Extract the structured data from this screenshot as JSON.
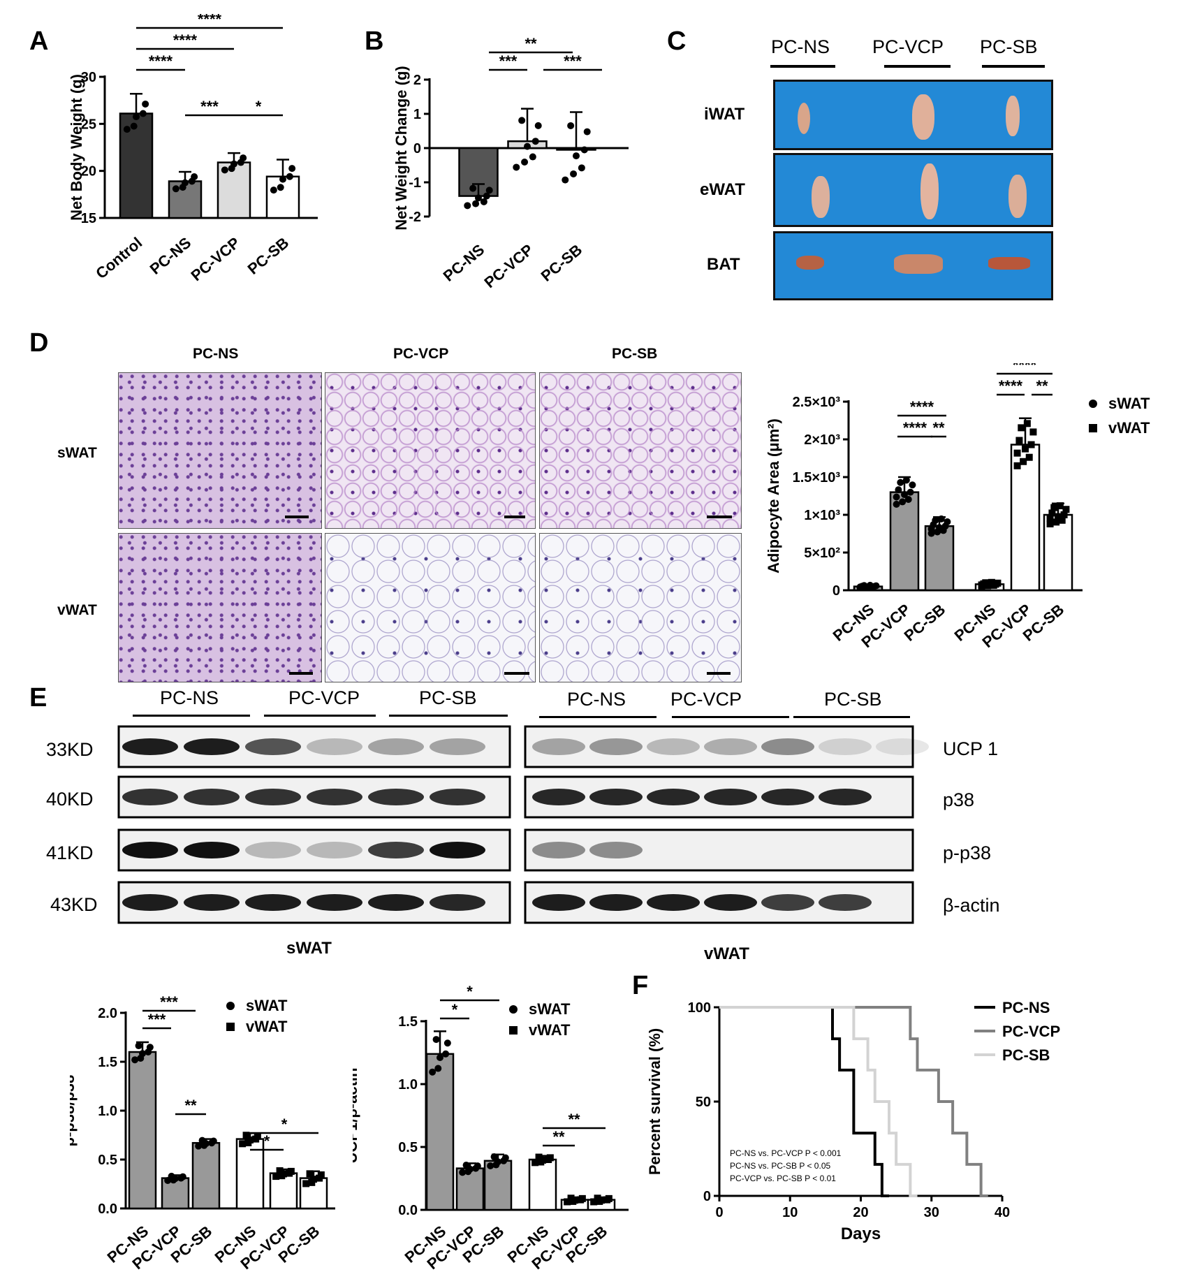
{
  "panels": {
    "A": {
      "letter": "A",
      "ylabel": "Net Body Weight (g)",
      "yticks": [
        "15",
        "20",
        "25",
        "30"
      ],
      "categories": [
        "Control",
        "PC-NS",
        "PC-VCP",
        "PC-SB"
      ],
      "sig": [
        "****",
        "****",
        "****",
        "***",
        "*"
      ]
    },
    "B": {
      "letter": "B",
      "ylabel": "Net Weight Change (g)",
      "yticks": [
        "-2",
        "-1",
        "0",
        "1",
        "2"
      ],
      "categories": [
        "PC-NS",
        "PC-VCP",
        "PC-SB"
      ],
      "sig": [
        "**",
        "***",
        "***"
      ]
    },
    "C": {
      "letter": "C",
      "groups": [
        "PC-NS",
        "PC-VCP",
        "PC-SB"
      ],
      "tissues": [
        "iWAT",
        "eWAT",
        "BAT"
      ]
    },
    "D": {
      "letter": "D",
      "columns": [
        "PC-NS",
        "PC-VCP",
        "PC-SB"
      ],
      "rows": [
        "sWAT",
        "vWAT"
      ],
      "ylabel": "Adipocyte Area (μm²)",
      "yticks": [
        "0",
        "5×10²",
        "1×10³",
        "1.5×10³",
        "2×10³",
        "2.5×10³"
      ],
      "categories": [
        "PC-NS",
        "PC-VCP",
        "PC-SB",
        "PC-NS",
        "PC-VCP",
        "PC-SB"
      ],
      "legend": [
        "sWAT",
        "vWAT"
      ],
      "sig": [
        "****",
        "****",
        "**",
        "****",
        "****",
        "**"
      ]
    },
    "E": {
      "letter": "E",
      "groups": [
        "PC-NS",
        "PC-VCP",
        "PC-SB"
      ],
      "kd": [
        "33KD",
        "40KD",
        "41KD",
        "43KD"
      ],
      "proteins": [
        "UCP 1",
        "p38",
        "p-p38",
        "β-actin"
      ],
      "tissues": [
        "sWAT",
        "vWAT"
      ],
      "bar1": {
        "ylabel": "p-p38/p38",
        "yticks": [
          "0.0",
          "0.5",
          "1.0",
          "1.5",
          "2.0"
        ],
        "categories": [
          "PC-NS",
          "PC-VCP",
          "PC-SB",
          "PC-NS",
          "PC-VCP",
          "PC-SB"
        ],
        "legend": [
          "sWAT",
          "vWAT"
        ],
        "sig": [
          "***",
          "***",
          "**",
          "*",
          "*"
        ]
      },
      "bar2": {
        "ylabel": "UCP1/β-actin",
        "yticks": [
          "0.0",
          "0.5",
          "1.0",
          "1.5"
        ],
        "categories": [
          "PC-NS",
          "PC-VCP",
          "PC-SB",
          "PC-NS",
          "PC-VCP",
          "PC-SB"
        ],
        "legend": [
          "sWAT",
          "vWAT"
        ],
        "sig": [
          "*",
          "*",
          "**",
          "**"
        ]
      }
    },
    "F": {
      "letter": "F",
      "ylabel": "Percent survival (%)",
      "xlabel": "Days",
      "yticks": [
        "0",
        "50",
        "100"
      ],
      "xticks": [
        "0",
        "10",
        "20",
        "30",
        "40"
      ],
      "legend": [
        "PC-NS",
        "PC-VCP",
        "PC-SB"
      ],
      "stats": [
        "PC-NS vs. PC-VCP   P < 0.001",
        "PC-NS vs. PC-SB     P < 0.05",
        "PC-VCP vs. PC-SB   P < 0.01"
      ]
    }
  },
  "chart_data": [
    {
      "type": "bar",
      "panel": "A",
      "categories": [
        "Control",
        "PC-NS",
        "PC-VCP",
        "PC-SB"
      ],
      "values": [
        26.1,
        18.9,
        20.9,
        19.4
      ],
      "errors": [
        2.1,
        1.0,
        1.0,
        1.8
      ],
      "colors": [
        "#333333",
        "#777777",
        "#dcdcdc",
        "#ffffff"
      ],
      "ylabel": "Net Body Weight (g)",
      "ylim": [
        15,
        30
      ]
    },
    {
      "type": "bar",
      "panel": "B",
      "categories": [
        "PC-NS",
        "PC-VCP",
        "PC-SB"
      ],
      "values": [
        -1.4,
        0.2,
        -0.05
      ],
      "errors": [
        0.35,
        0.95,
        1.1
      ],
      "colors": [
        "#555555",
        "#dcdcdc",
        "#ffffff"
      ],
      "ylabel": "Net Weight Change (g)",
      "ylim": [
        -2,
        2
      ]
    },
    {
      "type": "bar",
      "panel": "D",
      "categories": [
        "PC-NS",
        "PC-VCP",
        "PC-SB",
        "PC-NS",
        "PC-VCP",
        "PC-SB"
      ],
      "values": [
        50,
        1300,
        850,
        80,
        1930,
        1000
      ],
      "errors": [
        20,
        200,
        120,
        30,
        350,
        150
      ],
      "series_of_bar": [
        "sWAT",
        "sWAT",
        "sWAT",
        "vWAT",
        "vWAT",
        "vWAT"
      ],
      "ylabel": "Adipocyte Area (μm²)",
      "ylim": [
        0,
        2500
      ]
    },
    {
      "type": "bar",
      "panel": "E-left",
      "categories": [
        "PC-NS",
        "PC-VCP",
        "PC-SB",
        "PC-NS",
        "PC-VCP",
        "PC-SB"
      ],
      "values": [
        1.6,
        0.31,
        0.67,
        0.71,
        0.36,
        0.31
      ],
      "errors": [
        0.1,
        0.03,
        0.04,
        0.06,
        0.04,
        0.07
      ],
      "series_of_bar": [
        "sWAT",
        "sWAT",
        "sWAT",
        "vWAT",
        "vWAT",
        "vWAT"
      ],
      "ylabel": "p-p38/p38",
      "ylim": [
        0,
        2
      ]
    },
    {
      "type": "bar",
      "panel": "E-right",
      "categories": [
        "PC-NS",
        "PC-VCP",
        "PC-SB",
        "PC-NS",
        "PC-VCP",
        "PC-SB"
      ],
      "values": [
        1.24,
        0.33,
        0.39,
        0.4,
        0.08,
        0.08
      ],
      "errors": [
        0.18,
        0.04,
        0.05,
        0.03,
        0.02,
        0.02
      ],
      "series_of_bar": [
        "sWAT",
        "sWAT",
        "sWAT",
        "vWAT",
        "vWAT",
        "vWAT"
      ],
      "ylabel": "UCP1/β-actin",
      "ylim": [
        0,
        1.5
      ]
    },
    {
      "type": "line",
      "panel": "F",
      "xlabel": "Days",
      "ylabel": "Percent survival (%)",
      "xlim": [
        0,
        40
      ],
      "ylim": [
        0,
        100
      ],
      "series": [
        {
          "name": "PC-NS",
          "color": "#000000",
          "x": [
            0,
            16,
            17,
            18,
            19,
            22,
            23
          ],
          "y": [
            100,
            83.3,
            66.7,
            66.7,
            33.3,
            16.7,
            0
          ]
        },
        {
          "name": "PC-VCP",
          "color": "#808080",
          "x": [
            0,
            27,
            28,
            31,
            33,
            35,
            37
          ],
          "y": [
            100,
            83.3,
            66.7,
            50,
            33.3,
            16.7,
            0
          ]
        },
        {
          "name": "PC-SB",
          "color": "#d3d3d3",
          "x": [
            0,
            19,
            21,
            22,
            24,
            25,
            27
          ],
          "y": [
            100,
            83.3,
            66.7,
            50,
            33.3,
            16.7,
            0
          ]
        }
      ]
    }
  ]
}
